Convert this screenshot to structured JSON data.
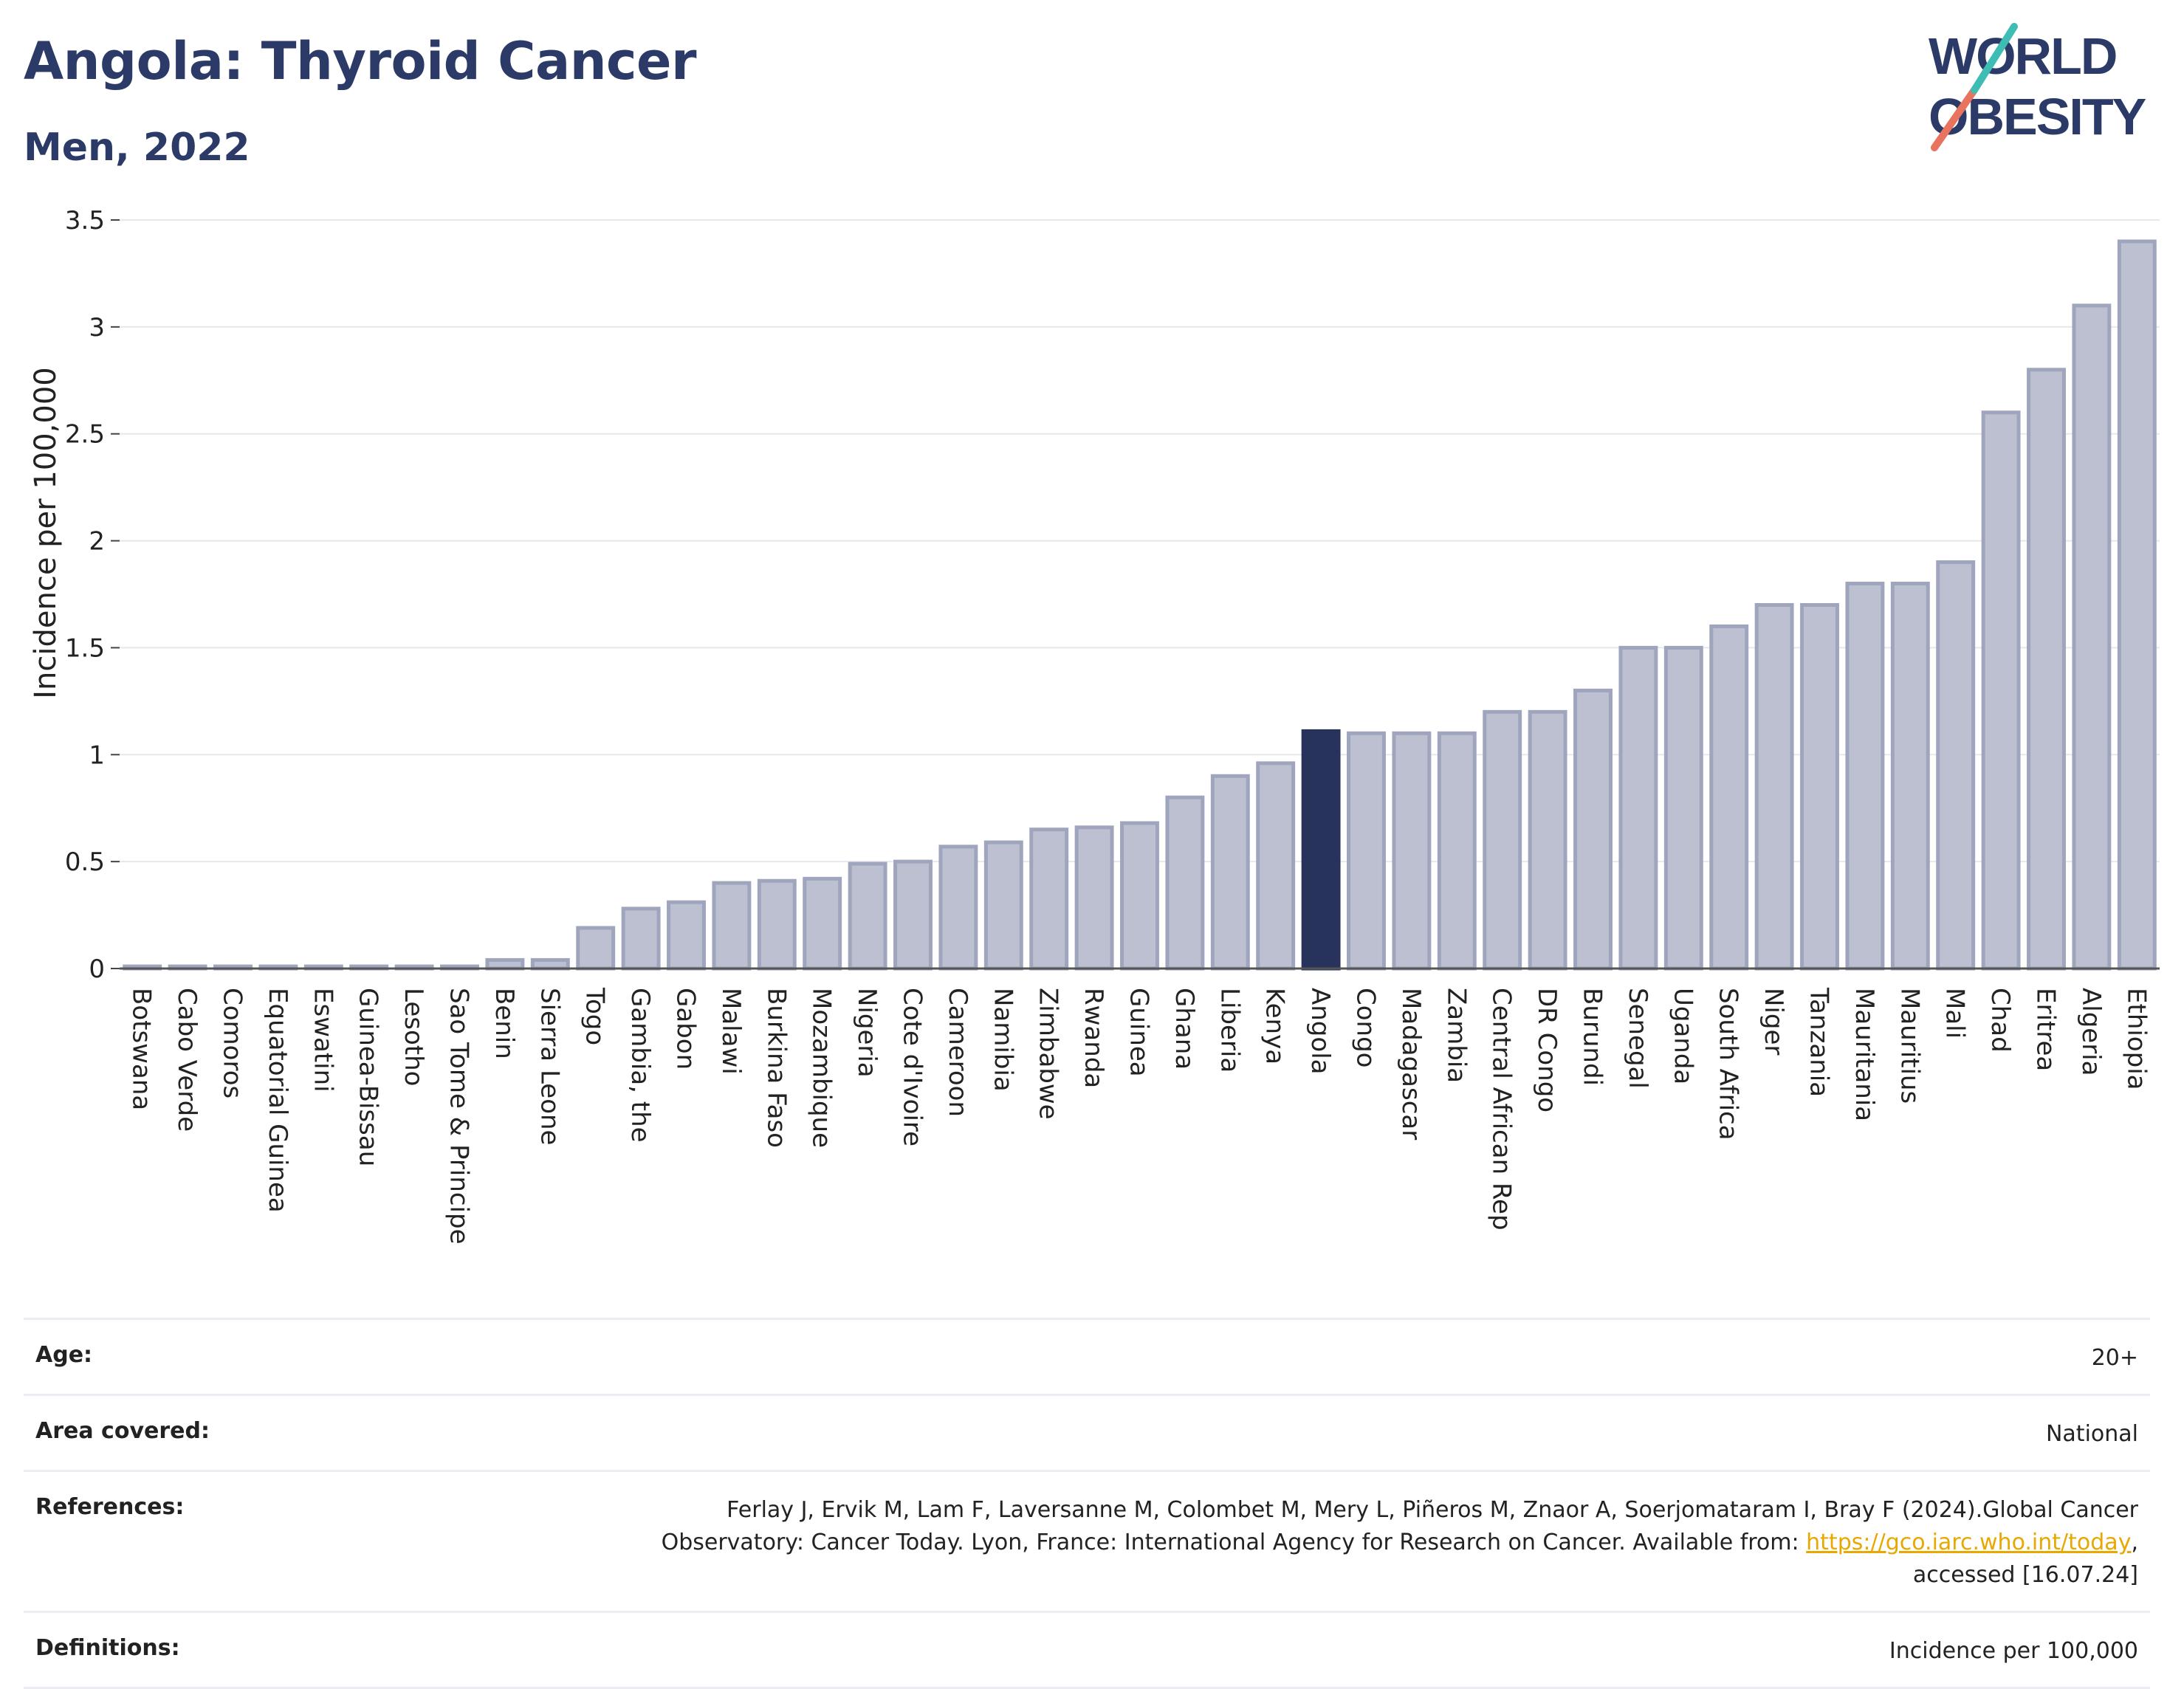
{
  "header": {
    "title": "Angola: Thyroid Cancer",
    "subtitle": "Men, 2022"
  },
  "logo": {
    "line1": "WORLD",
    "line2": "OBESITY"
  },
  "colors": {
    "title": "#2b3a67",
    "bar": "#bcc0d0",
    "bar_edge": "#9ea5bd",
    "highlight": "#28335c",
    "link": "#e8a800"
  },
  "chart_data": {
    "type": "bar",
    "ylabel": "Incidence per 100,000",
    "xlabel": "",
    "ylim": [
      0,
      3.5
    ],
    "yticks": [
      0,
      0.5,
      1,
      1.5,
      2,
      2.5,
      3,
      3.5
    ],
    "grid": true,
    "highlight": "Angola",
    "categories": [
      "Botswana",
      "Cabo Verde",
      "Comoros",
      "Equatorial Guinea",
      "Eswatini",
      "Guinea-Bissau",
      "Lesotho",
      "Sao Tome & Principe",
      "Benin",
      "Sierra Leone",
      "Togo",
      "Gambia, the",
      "Gabon",
      "Malawi",
      "Burkina Faso",
      "Mozambique",
      "Nigeria",
      "Cote d'Ivoire",
      "Cameroon",
      "Namibia",
      "Zimbabwe",
      "Rwanda",
      "Guinea",
      "Ghana",
      "Liberia",
      "Kenya",
      "Angola",
      "Congo",
      "Madagascar",
      "Zambia",
      "Central African Rep",
      "DR Congo",
      "Burundi",
      "Senegal",
      "Uganda",
      "South Africa",
      "Niger",
      "Tanzania",
      "Mauritania",
      "Mauritius",
      "Mali",
      "Chad",
      "Eritrea",
      "Algeria",
      "Ethiopia"
    ],
    "values": [
      0.01,
      0.01,
      0.01,
      0.01,
      0.01,
      0.01,
      0.01,
      0.01,
      0.04,
      0.04,
      0.19,
      0.28,
      0.31,
      0.4,
      0.41,
      0.42,
      0.49,
      0.5,
      0.57,
      0.59,
      0.65,
      0.66,
      0.68,
      0.8,
      0.9,
      0.96,
      1.11,
      1.1,
      1.1,
      1.1,
      1.2,
      1.2,
      1.3,
      1.5,
      1.5,
      1.6,
      1.7,
      1.7,
      1.8,
      1.8,
      1.9,
      2.6,
      2.8,
      3.1,
      3.4
    ]
  },
  "meta": {
    "age_label": "Age:",
    "age_value": "20+",
    "area_label": "Area covered:",
    "area_value": "National",
    "references_label": "References:",
    "references_line1": "Ferlay J, Ervik M, Lam F, Laversanne M, Colombet M, Mery L, Piñeros M, Znaor A, Soerjomataram I, Bray F (2024).Global Cancer",
    "references_line2_pre": "Observatory: Cancer Today. Lyon, France: International Agency for Research on Cancer. Available from: ",
    "references_link": "https://gco.iarc.who.int/today",
    "references_line2_post": ",",
    "references_line3": "accessed [16.07.24]",
    "definitions_label": "Definitions:",
    "definitions_value": "Incidence per 100,000"
  }
}
